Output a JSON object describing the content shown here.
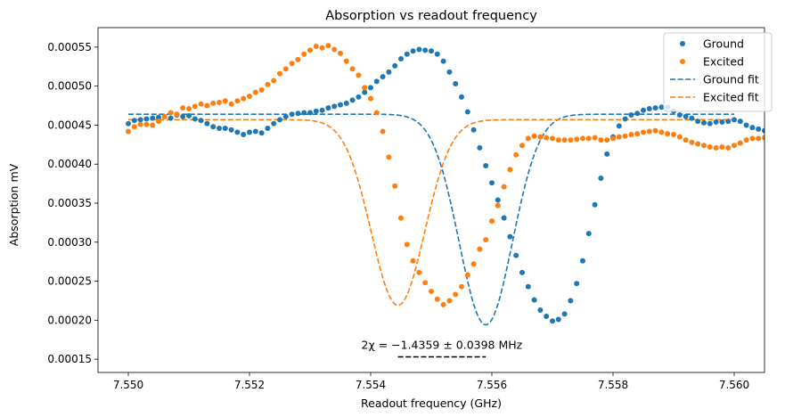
{
  "chart_data": {
    "type": "scatter",
    "title": "Absorption vs readout frequency",
    "xlabel": "Readout frequency (GHz)",
    "ylabel": "Absorption mV",
    "xlim": [
      7.5495,
      7.5605
    ],
    "ylim": [
      0.000133,
      0.000575
    ],
    "xticks": [
      7.55,
      7.552,
      7.554,
      7.556,
      7.558,
      7.56
    ],
    "xtick_labels": [
      "7.550",
      "7.552",
      "7.554",
      "7.556",
      "7.558",
      "7.560"
    ],
    "yticks": [
      0.00015,
      0.0002,
      0.00025,
      0.0003,
      0.00035,
      0.0004,
      0.00045,
      0.0005,
      0.00055
    ],
    "ytick_labels": [
      "0.00015",
      "0.00020",
      "0.00025",
      "0.00030",
      "0.00035",
      "0.00040",
      "0.00045",
      "0.00050",
      "0.00055"
    ],
    "grid": false,
    "legend_position": "top-right",
    "x_start": 7.55,
    "x_step": 0.0001,
    "series": [
      {
        "name": "Ground",
        "kind": "points",
        "color": "#1f77b4",
        "y": [
          0.000452,
          0.000456,
          0.000457,
          0.000458,
          0.000459,
          0.00046,
          0.000461,
          0.000459,
          0.000463,
          0.000461,
          0.000462,
          0.000458,
          0.000456,
          0.000452,
          0.000448,
          0.000446,
          0.000446,
          0.000444,
          0.000441,
          0.000438,
          0.000441,
          0.000442,
          0.00044,
          0.000446,
          0.000452,
          0.000457,
          0.000461,
          0.000464,
          0.000465,
          0.000466,
          0.000466,
          0.000468,
          0.000469,
          0.000472,
          0.000474,
          0.000476,
          0.000478,
          0.000482,
          0.000486,
          0.000492,
          0.000498,
          0.000506,
          0.000512,
          0.000518,
          0.000526,
          0.000535,
          0.000541,
          0.000545,
          0.000547,
          0.000546,
          0.000545,
          0.000541,
          0.000532,
          0.000518,
          0.000503,
          0.000486,
          0.000467,
          0.000444,
          0.000421,
          0.000398,
          0.000376,
          0.000354,
          0.000331,
          0.000307,
          0.000283,
          0.000261,
          0.000243,
          0.000226,
          0.000213,
          0.000205,
          0.000199,
          0.000201,
          0.000208,
          0.000225,
          0.000247,
          0.000276,
          0.000311,
          0.000348,
          0.000382,
          0.000413,
          0.000435,
          0.000449,
          0.000458,
          0.000463,
          0.000465,
          0.000469,
          0.000471,
          0.000472,
          0.000473,
          0.000473,
          0.000468,
          0.000463,
          0.000461,
          0.000459,
          0.000455,
          0.000453,
          0.000452,
          0.000454,
          0.000454,
          0.000455,
          0.000457,
          0.000455,
          0.00045,
          0.000447,
          0.000445,
          0.000443,
          0.000438,
          0.000434,
          0.000433,
          0.000431,
          0.000428,
          0.000425,
          0.000423,
          0.000424,
          0.000423,
          0.000421,
          0.000418,
          0.000419,
          0.000421,
          0.000422,
          0.000423
        ]
      },
      {
        "name": "Excited",
        "kind": "points",
        "color": "#ff7f0e",
        "y": [
          0.000442,
          0.000448,
          0.000451,
          0.000451,
          0.00045,
          0.000455,
          0.000461,
          0.000466,
          0.000464,
          0.000472,
          0.000471,
          0.000474,
          0.000477,
          0.000475,
          0.000478,
          0.000479,
          0.000481,
          0.000477,
          0.000481,
          0.000484,
          0.000487,
          0.000492,
          0.000495,
          0.000502,
          0.000507,
          0.000516,
          0.000522,
          0.000529,
          0.000534,
          0.000541,
          0.000546,
          0.000551,
          0.000549,
          0.000552,
          0.000547,
          0.000542,
          0.000532,
          0.000522,
          0.000514,
          0.000498,
          0.000484,
          0.000466,
          0.000442,
          0.000409,
          0.000372,
          0.000331,
          0.000297,
          0.000276,
          0.000261,
          0.000248,
          0.000237,
          0.000227,
          0.00022,
          0.000225,
          0.000233,
          0.000243,
          0.000258,
          0.000272,
          0.000291,
          0.000303,
          0.000327,
          0.000347,
          0.000371,
          0.000393,
          0.000412,
          0.000424,
          0.000433,
          0.000436,
          0.000435,
          0.000434,
          0.000433,
          0.000431,
          0.000431,
          0.000431,
          0.000432,
          0.000433,
          0.000433,
          0.000434,
          0.000431,
          0.000431,
          0.000433,
          0.000435,
          0.000436,
          0.000438,
          0.000439,
          0.000441,
          0.000442,
          0.000443,
          0.000441,
          0.000439,
          0.000438,
          0.000435,
          0.000431,
          0.000428,
          0.000426,
          0.000424,
          0.000422,
          0.000421,
          0.000422,
          0.000421,
          0.000424,
          0.000427,
          0.000431,
          0.000433,
          0.000433,
          0.000434,
          0.000435,
          0.000435,
          0.000433,
          0.000431,
          0.000429,
          0.000428,
          0.000426,
          0.000426,
          0.000425,
          0.000425,
          0.000426,
          0.000425,
          0.000424,
          0.000425,
          0.000426
        ]
      },
      {
        "name": "Ground fit",
        "kind": "gaussian-fit",
        "color": "#1f77b4",
        "baseline": 0.000464,
        "depth": 0.00027,
        "center": 7.5559,
        "sigma": 0.00044
      },
      {
        "name": "Excited fit",
        "kind": "gaussian-fit",
        "color": "#ff7f0e",
        "baseline": 0.000457,
        "depth": 0.000238,
        "center": 7.55445,
        "sigma": 0.00044
      }
    ],
    "annotation": {
      "text": "2χ = −1.4359 ± 0.0398 MHz",
      "x_range": [
        7.55445,
        7.5559
      ],
      "y": 0.000153
    }
  }
}
